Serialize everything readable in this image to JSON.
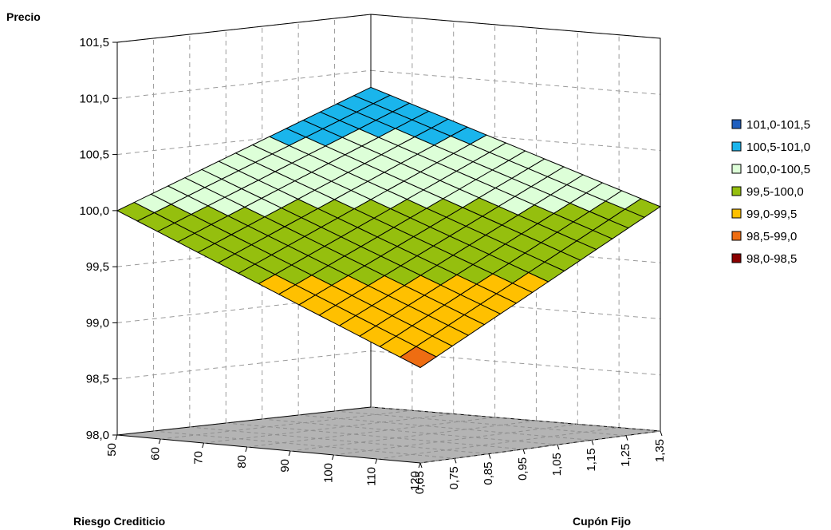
{
  "chart_data": {
    "type": "surface",
    "title": "",
    "zlabel": "Precio",
    "xlabel": "Riesgo Crediticio",
    "ylabel": "Cupón Fijo",
    "zlim": [
      98.0,
      101.5
    ],
    "z_ticks": [
      "98,0",
      "98,5",
      "99,0",
      "99,5",
      "100,0",
      "100,5",
      "101,0",
      "101,5"
    ],
    "x_ticks": [
      "50",
      "60",
      "70",
      "80",
      "90",
      "100",
      "110",
      "120"
    ],
    "y_ticks": [
      "0,65",
      "0,75",
      "0,85",
      "0,95",
      "1,05",
      "1,15",
      "1,25",
      "1,35"
    ],
    "x_range": [
      50,
      120
    ],
    "y_range": [
      0.65,
      1.35
    ],
    "surface_corners": {
      "x50_y0.65": 100.0,
      "x120_y1.35": 100.0,
      "x50_y1.35": 100.85,
      "x120_y0.65": 98.85
    },
    "grid": true,
    "legend_position": "right",
    "legend": [
      {
        "label": "101,0-101,5",
        "color": "#1f5fbf"
      },
      {
        "label": "100,5-101,0",
        "color": "#1ab5ec"
      },
      {
        "label": "100,0-100,5",
        "color": "#ddffd8"
      },
      {
        "label": "99,5-100,0",
        "color": "#95bf0e"
      },
      {
        "label": "99,0-99,5",
        "color": "#ffc000"
      },
      {
        "label": "98,5-99,0",
        "color": "#ee6d12"
      },
      {
        "label": "98,0-98,5",
        "color": "#8b0000"
      }
    ]
  }
}
